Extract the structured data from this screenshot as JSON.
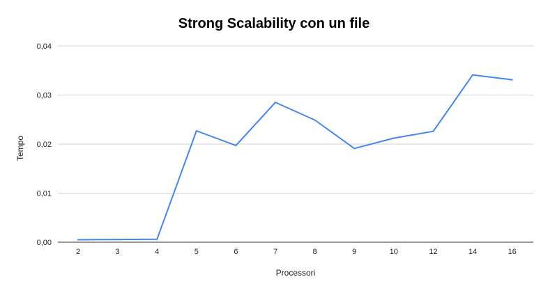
{
  "chart_data": {
    "type": "line",
    "title": "Strong Scalability con un file",
    "xlabel": "Processori",
    "ylabel": "Tempo",
    "categories": [
      "2",
      "3",
      "4",
      "5",
      "6",
      "7",
      "8",
      "9",
      "10",
      "12",
      "14",
      "16"
    ],
    "series": [
      {
        "values": [
          0.0005,
          0.00055,
          0.0006,
          0.0227,
          0.0197,
          0.0285,
          0.0249,
          0.0191,
          0.0212,
          0.0226,
          0.0341,
          0.0331
        ],
        "color": "#4285f4"
      }
    ],
    "ylim": [
      0,
      0.04
    ],
    "yticks": [
      "0,00",
      "0,01",
      "0,02",
      "0,03",
      "0,04"
    ],
    "grid": true,
    "legend": "none"
  }
}
